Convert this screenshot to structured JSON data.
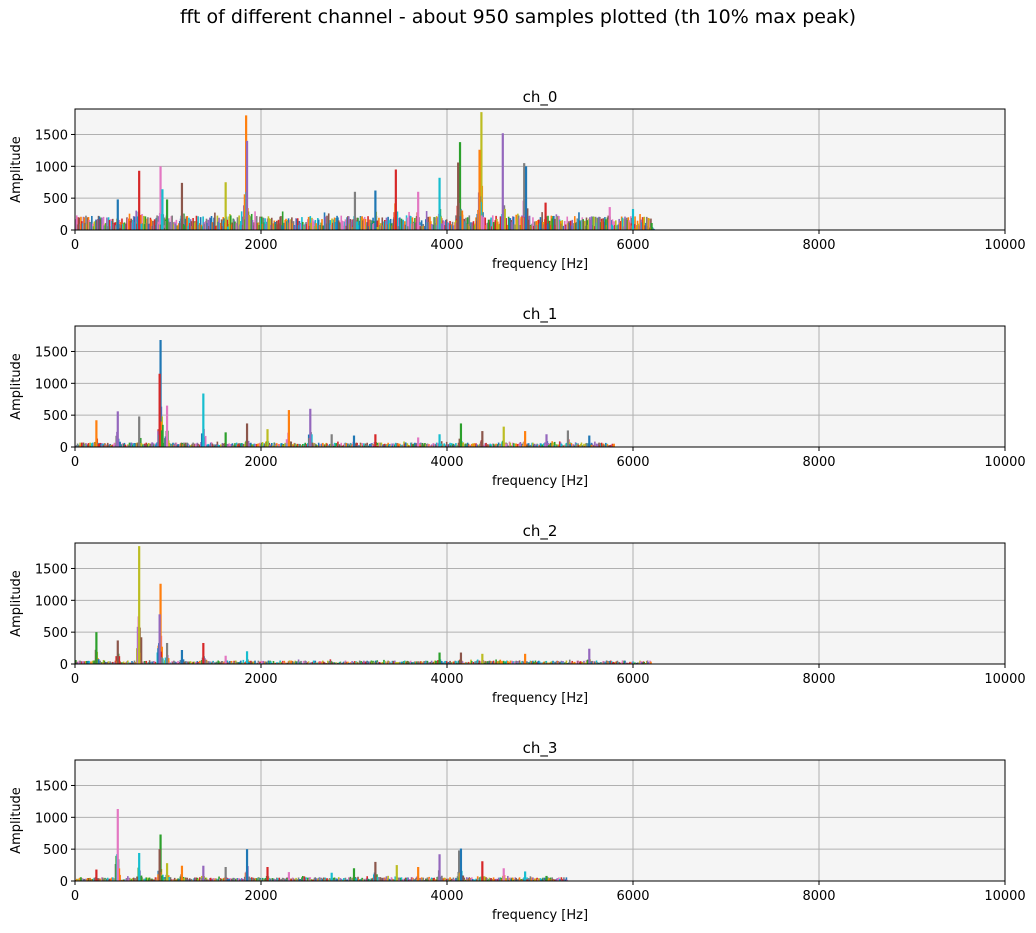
{
  "suptitle": "fft of different channel - about 950 samples plotted (th 10% max peak)",
  "chart_data": [
    {
      "type": "bar",
      "title": "ch_0",
      "xlabel": "frequency [Hz]",
      "ylabel": "Amplitude",
      "xlim": [
        0,
        10000
      ],
      "ylim": [
        0,
        1900
      ],
      "xticks": [
        0,
        2000,
        4000,
        6000,
        8000,
        10000
      ],
      "yticks": [
        0,
        500,
        1000,
        1500
      ],
      "grid": true,
      "background": "#f5f5f5",
      "noise": {
        "x_max": 6200,
        "level": 230
      },
      "peaks": [
        {
          "x": 460,
          "y": 480
        },
        {
          "x": 690,
          "y": 930
        },
        {
          "x": 920,
          "y": 1000
        },
        {
          "x": 940,
          "y": 640
        },
        {
          "x": 990,
          "y": 480
        },
        {
          "x": 1150,
          "y": 740
        },
        {
          "x": 1620,
          "y": 750
        },
        {
          "x": 1840,
          "y": 1800
        },
        {
          "x": 1850,
          "y": 1400
        },
        {
          "x": 3010,
          "y": 600
        },
        {
          "x": 3230,
          "y": 620
        },
        {
          "x": 3450,
          "y": 950
        },
        {
          "x": 3690,
          "y": 600
        },
        {
          "x": 3920,
          "y": 820
        },
        {
          "x": 4140,
          "y": 1380
        },
        {
          "x": 4120,
          "y": 1060
        },
        {
          "x": 4370,
          "y": 1850
        },
        {
          "x": 4350,
          "y": 1260
        },
        {
          "x": 4600,
          "y": 1520
        },
        {
          "x": 4830,
          "y": 1050
        },
        {
          "x": 4850,
          "y": 1000
        },
        {
          "x": 5060,
          "y": 430
        },
        {
          "x": 5750,
          "y": 360
        },
        {
          "x": 6000,
          "y": 330
        },
        {
          "x": 6200,
          "y": 110
        }
      ]
    },
    {
      "type": "bar",
      "title": "ch_1",
      "xlabel": "frequency [Hz]",
      "ylabel": "Amplitude",
      "xlim": [
        0,
        10000
      ],
      "ylim": [
        0,
        1900
      ],
      "xticks": [
        0,
        2000,
        4000,
        6000,
        8000,
        10000
      ],
      "yticks": [
        0,
        500,
        1000,
        1500
      ],
      "grid": true,
      "background": "#f5f5f5",
      "noise": {
        "x_max": 5800,
        "level": 70
      },
      "peaks": [
        {
          "x": 230,
          "y": 420
        },
        {
          "x": 460,
          "y": 560
        },
        {
          "x": 690,
          "y": 480
        },
        {
          "x": 920,
          "y": 1680
        },
        {
          "x": 910,
          "y": 1150
        },
        {
          "x": 990,
          "y": 650
        },
        {
          "x": 1380,
          "y": 840
        },
        {
          "x": 1620,
          "y": 230
        },
        {
          "x": 1850,
          "y": 370
        },
        {
          "x": 2070,
          "y": 280
        },
        {
          "x": 2300,
          "y": 580
        },
        {
          "x": 2530,
          "y": 600
        },
        {
          "x": 2760,
          "y": 200
        },
        {
          "x": 3000,
          "y": 180
        },
        {
          "x": 3230,
          "y": 200
        },
        {
          "x": 3690,
          "y": 150
        },
        {
          "x": 3920,
          "y": 200
        },
        {
          "x": 4150,
          "y": 370
        },
        {
          "x": 4380,
          "y": 250
        },
        {
          "x": 4610,
          "y": 320
        },
        {
          "x": 4840,
          "y": 250
        },
        {
          "x": 5070,
          "y": 200
        },
        {
          "x": 5300,
          "y": 260
        },
        {
          "x": 5530,
          "y": 180
        }
      ]
    },
    {
      "type": "bar",
      "title": "ch_2",
      "xlabel": "frequency [Hz]",
      "ylabel": "Amplitude",
      "xlim": [
        0,
        10000
      ],
      "ylim": [
        0,
        1900
      ],
      "xticks": [
        0,
        2000,
        4000,
        6000,
        8000,
        10000
      ],
      "yticks": [
        0,
        500,
        1000,
        1500
      ],
      "grid": true,
      "background": "#f5f5f5",
      "noise": {
        "x_max": 6200,
        "level": 55
      },
      "peaks": [
        {
          "x": 230,
          "y": 500
        },
        {
          "x": 460,
          "y": 370
        },
        {
          "x": 690,
          "y": 1850
        },
        {
          "x": 920,
          "y": 1260
        },
        {
          "x": 910,
          "y": 780
        },
        {
          "x": 990,
          "y": 330
        },
        {
          "x": 1150,
          "y": 220
        },
        {
          "x": 1380,
          "y": 330
        },
        {
          "x": 1620,
          "y": 130
        },
        {
          "x": 1850,
          "y": 200
        },
        {
          "x": 3920,
          "y": 180
        },
        {
          "x": 4150,
          "y": 180
        },
        {
          "x": 4380,
          "y": 160
        },
        {
          "x": 4840,
          "y": 160
        },
        {
          "x": 5530,
          "y": 240
        }
      ]
    },
    {
      "type": "bar",
      "title": "ch_3",
      "xlabel": "frequency [Hz]",
      "ylabel": "Amplitude",
      "xlim": [
        0,
        10000
      ],
      "ylim": [
        0,
        1900
      ],
      "xticks": [
        0,
        2000,
        4000,
        6000,
        8000,
        10000
      ],
      "yticks": [
        0,
        500,
        1000,
        1500
      ],
      "grid": true,
      "background": "#f5f5f5",
      "noise": {
        "x_max": 5300,
        "level": 60
      },
      "peaks": [
        {
          "x": 230,
          "y": 180
        },
        {
          "x": 460,
          "y": 1130
        },
        {
          "x": 690,
          "y": 440
        },
        {
          "x": 920,
          "y": 730
        },
        {
          "x": 910,
          "y": 500
        },
        {
          "x": 990,
          "y": 280
        },
        {
          "x": 1150,
          "y": 240
        },
        {
          "x": 1380,
          "y": 240
        },
        {
          "x": 1620,
          "y": 220
        },
        {
          "x": 1850,
          "y": 500
        },
        {
          "x": 2070,
          "y": 220
        },
        {
          "x": 2300,
          "y": 140
        },
        {
          "x": 2760,
          "y": 130
        },
        {
          "x": 3000,
          "y": 200
        },
        {
          "x": 3230,
          "y": 300
        },
        {
          "x": 3460,
          "y": 250
        },
        {
          "x": 3690,
          "y": 220
        },
        {
          "x": 3920,
          "y": 420
        },
        {
          "x": 4130,
          "y": 480
        },
        {
          "x": 4150,
          "y": 510
        },
        {
          "x": 4380,
          "y": 310
        },
        {
          "x": 4610,
          "y": 200
        },
        {
          "x": 4840,
          "y": 150
        },
        {
          "x": 5070,
          "y": 80
        }
      ]
    }
  ],
  "colors": [
    "#1f77b4",
    "#ff7f0e",
    "#2ca02c",
    "#d62728",
    "#9467bd",
    "#8c564b",
    "#e377c2",
    "#7f7f7f",
    "#bcbd22",
    "#17becf"
  ]
}
